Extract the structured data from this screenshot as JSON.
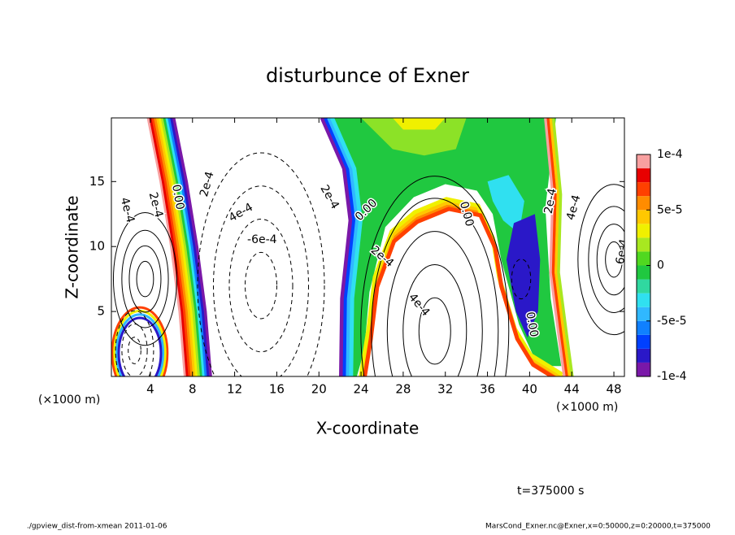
{
  "chart_data": {
    "type": "contour",
    "title": "disturbunce of Exner",
    "x_label": "X-coordinate",
    "y_label": "Z-coordinate",
    "x_unit": "(×1000 m)",
    "x_unit_right": "(×1000 m)",
    "xlim": [
      0.3,
      49
    ],
    "ylim": [
      0,
      19.9
    ],
    "xticks": [
      4,
      8,
      12,
      16,
      20,
      24,
      28,
      32,
      36,
      40,
      44,
      48
    ],
    "yticks": [
      5,
      10,
      15
    ],
    "colorbar": {
      "levels": [
        -0.0001,
        -8.75e-05,
        -7.5e-05,
        -6.25e-05,
        -5e-05,
        -3.75e-05,
        -2.5e-05,
        -1.25e-05,
        0,
        1.25e-05,
        2.5e-05,
        3.75e-05,
        5e-05,
        6.25e-05,
        7.5e-05,
        8.75e-05,
        0.0001
      ],
      "colors": [
        "#7a18a8",
        "#2a18c8",
        "#0040ff",
        "#1080ff",
        "#30b8ff",
        "#30e0f0",
        "#30d8a0",
        "#20c840",
        "#50d820",
        "#a8e820",
        "#f0f000",
        "#ffc800",
        "#ff8c00",
        "#ff4000",
        "#e80000",
        "#f8a0a0"
      ],
      "ticks": [
        {
          "value": 0.0001,
          "label": "1e-4"
        },
        {
          "value": 5e-05,
          "label": "5e-5"
        },
        0,
        {
          "value": -5e-05,
          "label": "-5e-5"
        },
        {
          "value": -0.0001,
          "label": "-1e-4"
        }
      ]
    },
    "contour_labels": [
      "4e-4",
      "2e-4",
      "0.00",
      "2e-4",
      "4e-4",
      "-6e-4",
      "2e-4",
      "0.00",
      "2e-4",
      "4e-4",
      "0.00",
      "0.00",
      "2e-4",
      "4e-4",
      "6e-4"
    ],
    "time_label": "t=375000 s",
    "footer_left": "./gpview_dist-from-xmean  2011-01-06",
    "footer_right": "MarsCond_Exner.nc@Exner,x=0:50000,z=0:20000,t=375000"
  }
}
